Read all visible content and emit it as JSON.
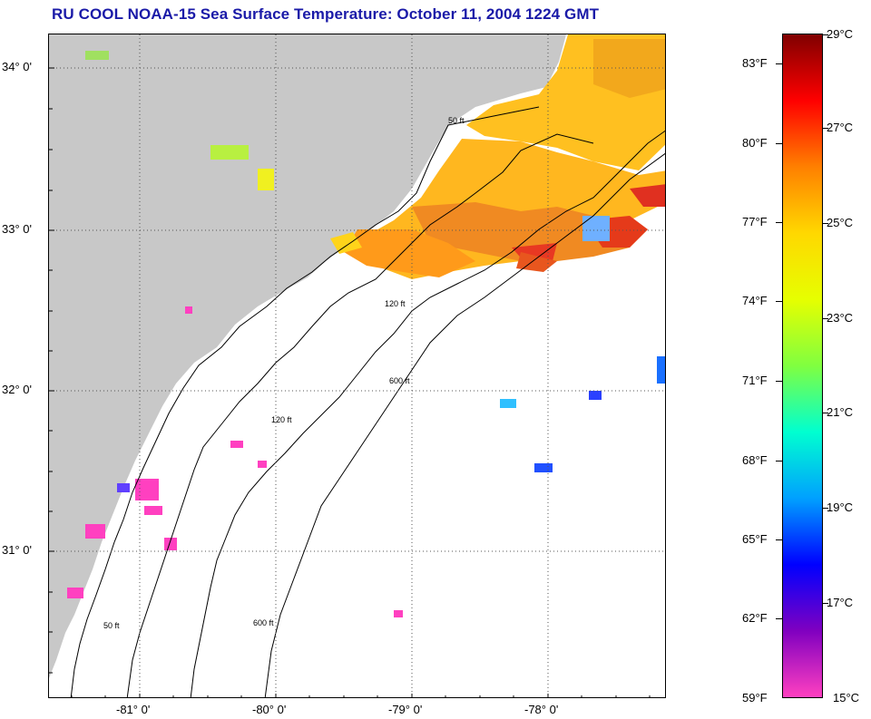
{
  "title": "RU COOL  NOAA-15  Sea Surface Temperature:  October 11, 2004 1224 GMT",
  "map": {
    "lat_labels": [
      "34° 0'",
      "33° 0'",
      "32° 0'",
      "31° 0'"
    ],
    "lon_labels": [
      "-81° 0'",
      "-80° 0'",
      "-79° 0'",
      "-78° 0'"
    ],
    "contour_labels": [
      "50 ft",
      "120 ft",
      "600 ft"
    ],
    "colors": {
      "land": "#c8c8c8",
      "ocean": "#ffffff",
      "grid": "#555555"
    }
  },
  "colorbar": {
    "fahrenheit_labels": [
      "83°F",
      "80°F",
      "77°F",
      "74°F",
      "71°F",
      "68°F",
      "65°F",
      "62°F",
      "59°F"
    ],
    "celsius_labels": [
      "29°C",
      "27°C",
      "25°C",
      "23°C",
      "21°C",
      "19°C",
      "17°C",
      "15°C"
    ],
    "colors": [
      "#800000",
      "#ff0000",
      "#ff8000",
      "#ffd800",
      "#e6ff00",
      "#80ff40",
      "#00ffd0",
      "#00a0ff",
      "#0000ff",
      "#8000c0",
      "#ff40c0"
    ]
  }
}
